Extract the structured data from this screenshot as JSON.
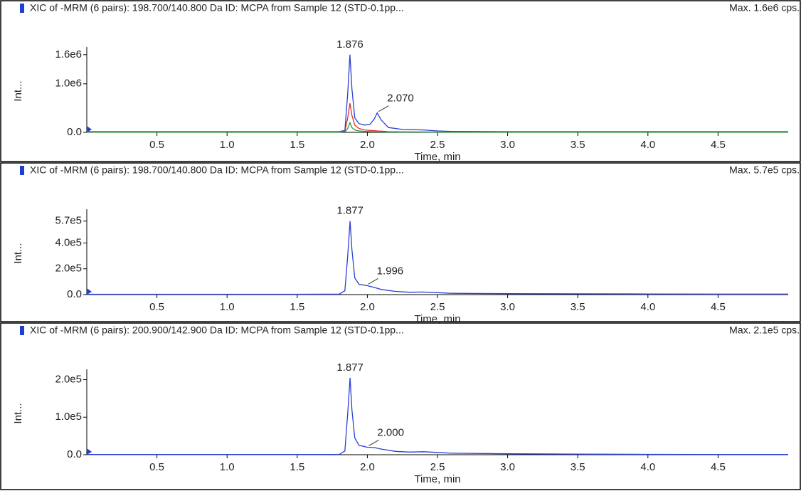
{
  "chart_data": [
    {
      "type": "line",
      "title": "XIC of -MRM (6 pairs): 198.700/140.800 Da ID: MCPA from Sample 12 (STD-0.1pp...",
      "subtitle": "Max. 1.6e6 cps.",
      "x_label": "Time, min",
      "y_label": "Int...",
      "x": [
        0,
        0.5,
        1.0,
        1.5,
        1.8,
        1.84,
        1.86,
        1.876,
        1.89,
        1.91,
        1.94,
        1.98,
        2.02,
        2.05,
        2.07,
        2.1,
        2.15,
        2.25,
        2.4,
        2.5,
        2.6,
        3.0,
        3.5,
        4.0,
        4.5,
        5.0
      ],
      "series": [
        {
          "name": "198.700/140.800",
          "color": "#2b3fd6",
          "values": [
            15000,
            15000,
            15000,
            15000,
            15000,
            40000,
            800000,
            1600000,
            900000,
            300000,
            180000,
            150000,
            170000,
            280000,
            400000,
            250000,
            100000,
            60000,
            50000,
            30000,
            20000,
            15000,
            15000,
            15000,
            15000,
            15000
          ]
        },
        {
          "name": "red",
          "color": "#e03030",
          "values": [
            8000,
            8000,
            8000,
            8000,
            8000,
            20000,
            300000,
            600000,
            350000,
            150000,
            80000,
            50000,
            40000,
            35000,
            30000,
            25000,
            15000,
            10000,
            9000,
            8000,
            8000,
            8000,
            8000,
            8000,
            8000,
            8000
          ]
        },
        {
          "name": "green",
          "color": "#2a9a3a",
          "values": [
            5000,
            5000,
            5000,
            5000,
            5000,
            10000,
            80000,
            200000,
            100000,
            50000,
            30000,
            20000,
            15000,
            12000,
            10000,
            9000,
            8000,
            6000,
            6000,
            5000,
            5000,
            5000,
            5000,
            5000,
            5000,
            5000
          ]
        }
      ],
      "peak_labels": [
        {
          "label": "1.876",
          "x": 1.876,
          "y": 1600000
        },
        {
          "label": "2.070",
          "x": 2.07,
          "y": 400000
        }
      ],
      "xlim": [
        0,
        5.0
      ],
      "ylim": [
        0,
        1700000
      ],
      "xticks": [
        0.5,
        {
          "value": 1,
          "label": "1.0"
        },
        1.5,
        {
          "value": 2,
          "label": "2.0"
        },
        2.5,
        {
          "value": 3,
          "label": "3.0"
        },
        3.5,
        {
          "value": 4,
          "label": "4.0"
        },
        4.5
      ],
      "yticks": [
        {
          "value": 0,
          "label": "0.0"
        },
        {
          "value": 1000000,
          "label": "1.0e6"
        },
        {
          "value": 1600000,
          "label": "1.6e6"
        }
      ]
    },
    {
      "type": "line",
      "title": "XIC of -MRM (6 pairs): 198.700/140.800 Da ID: MCPA from Sample 12 (STD-0.1pp...",
      "subtitle": "Max. 5.7e5 cps.",
      "x_label": "Time, min",
      "y_label": "Int...",
      "x": [
        0,
        0.5,
        1.0,
        1.5,
        1.8,
        1.84,
        1.86,
        1.877,
        1.89,
        1.91,
        1.94,
        1.996,
        2.05,
        2.1,
        2.2,
        2.3,
        2.4,
        2.5,
        2.6,
        3.0,
        3.5,
        4.0,
        4.5,
        5.0
      ],
      "series": [
        {
          "name": "198.700/140.800",
          "color": "#2b3fd6",
          "values": [
            3000,
            3000,
            3000,
            3000,
            4000,
            30000,
            300000,
            570000,
            350000,
            130000,
            80000,
            70000,
            55000,
            40000,
            25000,
            18000,
            20000,
            15000,
            10000,
            7000,
            6000,
            5000,
            4000,
            4000
          ]
        }
      ],
      "peak_labels": [
        {
          "label": "1.877",
          "x": 1.877,
          "y": 570000
        },
        {
          "label": "1.996",
          "x": 1.996,
          "y": 70000
        }
      ],
      "xlim": [
        0,
        5.0
      ],
      "ylim": [
        0,
        640000
      ],
      "xticks": [
        0.5,
        {
          "value": 1,
          "label": "1.0"
        },
        1.5,
        {
          "value": 2,
          "label": "2.0"
        },
        2.5,
        {
          "value": 3,
          "label": "3.0"
        },
        3.5,
        {
          "value": 4,
          "label": "4.0"
        },
        4.5
      ],
      "yticks": [
        {
          "value": 0,
          "label": "0.0"
        },
        {
          "value": 200000,
          "label": "2.0e5"
        },
        {
          "value": 400000,
          "label": "4.0e5"
        },
        {
          "value": 570000,
          "label": "5.7e5"
        }
      ]
    },
    {
      "type": "line",
      "title": "XIC of -MRM (6 pairs): 200.900/142.900 Da ID: MCPA from Sample 12 (STD-0.1pp...",
      "subtitle": "Max. 2.1e5 cps.",
      "x_label": "Time, min",
      "y_label": "Int...",
      "x": [
        0,
        0.5,
        1.0,
        1.5,
        1.8,
        1.84,
        1.86,
        1.877,
        1.89,
        1.91,
        1.94,
        2.0,
        2.05,
        2.1,
        2.2,
        2.3,
        2.4,
        2.5,
        2.6,
        3.0,
        3.5,
        4.0,
        4.5,
        5.0
      ],
      "series": [
        {
          "name": "200.900/142.900",
          "color": "#2b3fd6",
          "values": [
            500,
            500,
            500,
            500,
            1000,
            10000,
            110000,
            205000,
            120000,
            45000,
            25000,
            20000,
            19000,
            15000,
            9000,
            7000,
            8000,
            6000,
            4000,
            2500,
            1500,
            1000,
            800,
            800
          ]
        }
      ],
      "peak_labels": [
        {
          "label": "1.877",
          "x": 1.877,
          "y": 205000
        },
        {
          "label": "2.000",
          "x": 2.0,
          "y": 20000
        }
      ],
      "xlim": [
        0,
        5.0
      ],
      "ylim": [
        0,
        220000
      ],
      "xticks": [
        0.5,
        {
          "value": 1,
          "label": "1.0"
        },
        1.5,
        {
          "value": 2,
          "label": "2.0"
        },
        2.5,
        {
          "value": 3,
          "label": "3.0"
        },
        3.5,
        {
          "value": 4,
          "label": "4.0"
        },
        4.5
      ],
      "yticks": [
        {
          "value": 0,
          "label": "0.0"
        },
        {
          "value": 100000,
          "label": "1.0e5"
        },
        {
          "value": 200000,
          "label": "2.0e5"
        }
      ]
    }
  ]
}
